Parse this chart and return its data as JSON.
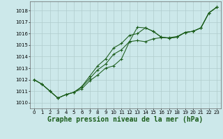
{
  "title": "Graphe pression niveau de la mer (hPa)",
  "bg_color": "#cce8ea",
  "grid_color": "#b0cccc",
  "line_color": "#1a5c1a",
  "marker": "+",
  "xlim": [
    -0.5,
    23.5
  ],
  "ylim": [
    1009.5,
    1018.8
  ],
  "xticks": [
    0,
    1,
    2,
    3,
    4,
    5,
    6,
    7,
    8,
    9,
    10,
    11,
    12,
    13,
    14,
    15,
    16,
    17,
    18,
    19,
    20,
    21,
    22,
    23
  ],
  "yticks": [
    1010,
    1011,
    1012,
    1013,
    1014,
    1015,
    1016,
    1017,
    1018
  ],
  "series1_x": [
    0,
    1,
    2,
    3,
    4,
    5,
    6,
    7,
    8,
    9,
    10,
    11,
    12,
    13,
    14,
    15,
    16,
    17,
    18,
    19,
    20,
    21,
    22,
    23
  ],
  "series1_y": [
    1012.0,
    1011.6,
    1011.0,
    1010.4,
    1010.7,
    1010.9,
    1011.2,
    1011.9,
    1012.4,
    1013.0,
    1013.2,
    1013.8,
    1015.3,
    1016.55,
    1016.5,
    1016.2,
    1015.7,
    1015.6,
    1015.7,
    1016.1,
    1016.2,
    1016.5,
    1017.8,
    1018.3
  ],
  "series2_x": [
    0,
    1,
    2,
    3,
    4,
    5,
    6,
    7,
    8,
    9,
    10,
    11,
    12,
    13,
    14,
    15,
    16,
    17,
    18,
    19,
    20,
    21,
    22,
    23
  ],
  "series2_y": [
    1012.0,
    1011.6,
    1011.0,
    1010.4,
    1010.7,
    1010.9,
    1011.35,
    1012.1,
    1012.85,
    1013.35,
    1014.2,
    1014.6,
    1015.3,
    1015.4,
    1015.3,
    1015.55,
    1015.65,
    1015.65,
    1015.75,
    1016.1,
    1016.2,
    1016.5,
    1017.8,
    1018.3
  ],
  "series3_x": [
    0,
    1,
    2,
    3,
    4,
    5,
    6,
    7,
    8,
    9,
    10,
    11,
    12,
    13,
    14,
    15,
    16,
    17,
    18,
    19,
    20,
    21,
    22,
    23
  ],
  "series3_y": [
    1012.0,
    1011.6,
    1011.0,
    1010.4,
    1010.7,
    1010.9,
    1011.4,
    1012.3,
    1013.2,
    1013.8,
    1014.75,
    1015.15,
    1015.85,
    1016.0,
    1016.5,
    1016.2,
    1015.7,
    1015.6,
    1015.7,
    1016.1,
    1016.2,
    1016.5,
    1017.8,
    1018.3
  ],
  "tick_fontsize": 5.0,
  "title_fontsize": 7.0,
  "lw": 0.75,
  "ms": 2.5
}
